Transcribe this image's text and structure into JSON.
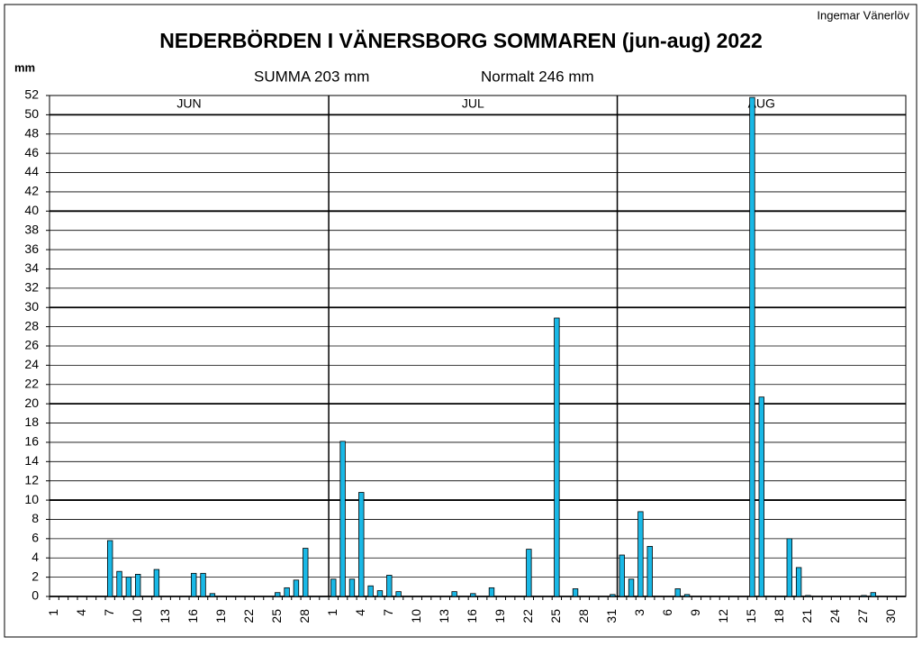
{
  "chart_data": {
    "type": "bar",
    "author": "Ingemar Vänerlöv",
    "title": "NEDERBÖRDEN I VÄNERSBORG  SOMMAREN (jun-aug) 2022",
    "y_label": "mm",
    "subtitle_sum": "SUMMA  203 mm",
    "subtitle_normal": "Normalt  246 mm",
    "months": [
      "JUN",
      "JUL",
      "AUG"
    ],
    "categories": [
      "1",
      null,
      null,
      "4",
      null,
      null,
      "7",
      null,
      null,
      "10",
      null,
      null,
      "13",
      null,
      null,
      "16",
      null,
      null,
      "19",
      null,
      null,
      "22",
      null,
      null,
      "25",
      null,
      null,
      "28",
      null,
      null,
      "1",
      null,
      null,
      "4",
      null,
      null,
      "7",
      null,
      null,
      "10",
      null,
      null,
      "13",
      null,
      null,
      "16",
      null,
      null,
      "19",
      null,
      null,
      "22",
      null,
      null,
      "25",
      null,
      null,
      "28",
      null,
      null,
      "31",
      null,
      null,
      "3",
      null,
      null,
      "6",
      null,
      null,
      "9",
      null,
      null,
      "12",
      null,
      null,
      "15",
      null,
      null,
      "18",
      null,
      null,
      "21",
      null,
      null,
      "24",
      null,
      null,
      "27",
      null,
      null,
      "30",
      null
    ],
    "values": [
      0,
      0,
      0,
      0,
      0,
      0,
      5.8,
      2.6,
      2.0,
      2.3,
      0,
      2.8,
      0,
      0,
      0,
      2.4,
      2.4,
      0.3,
      0,
      0,
      0,
      0,
      0,
      0,
      0.4,
      0.9,
      1.7,
      5.0,
      0,
      0,
      1.8,
      16.1,
      1.8,
      10.8,
      1.1,
      0.6,
      2.2,
      0.5,
      0,
      0,
      0,
      0,
      0,
      0.5,
      0,
      0.3,
      0,
      0.9,
      0,
      0,
      0,
      4.9,
      0,
      0,
      28.9,
      0,
      0.8,
      0,
      0,
      0,
      0.2,
      4.3,
      1.8,
      8.8,
      5.2,
      0,
      0,
      0.8,
      0.2,
      0,
      0,
      0,
      0,
      0,
      0,
      51.8,
      20.7,
      0,
      0,
      6.0,
      3.0,
      0.1,
      0,
      0,
      0,
      0,
      0,
      0.1,
      0.4,
      0,
      0,
      0
    ],
    "color": "#19b8e6",
    "ylim": [
      0,
      52
    ],
    "yticks": [
      0,
      2,
      4,
      6,
      8,
      10,
      12,
      14,
      16,
      18,
      20,
      22,
      24,
      26,
      28,
      30,
      32,
      34,
      36,
      38,
      40,
      42,
      44,
      46,
      48,
      50,
      52
    ],
    "grid": true
  }
}
